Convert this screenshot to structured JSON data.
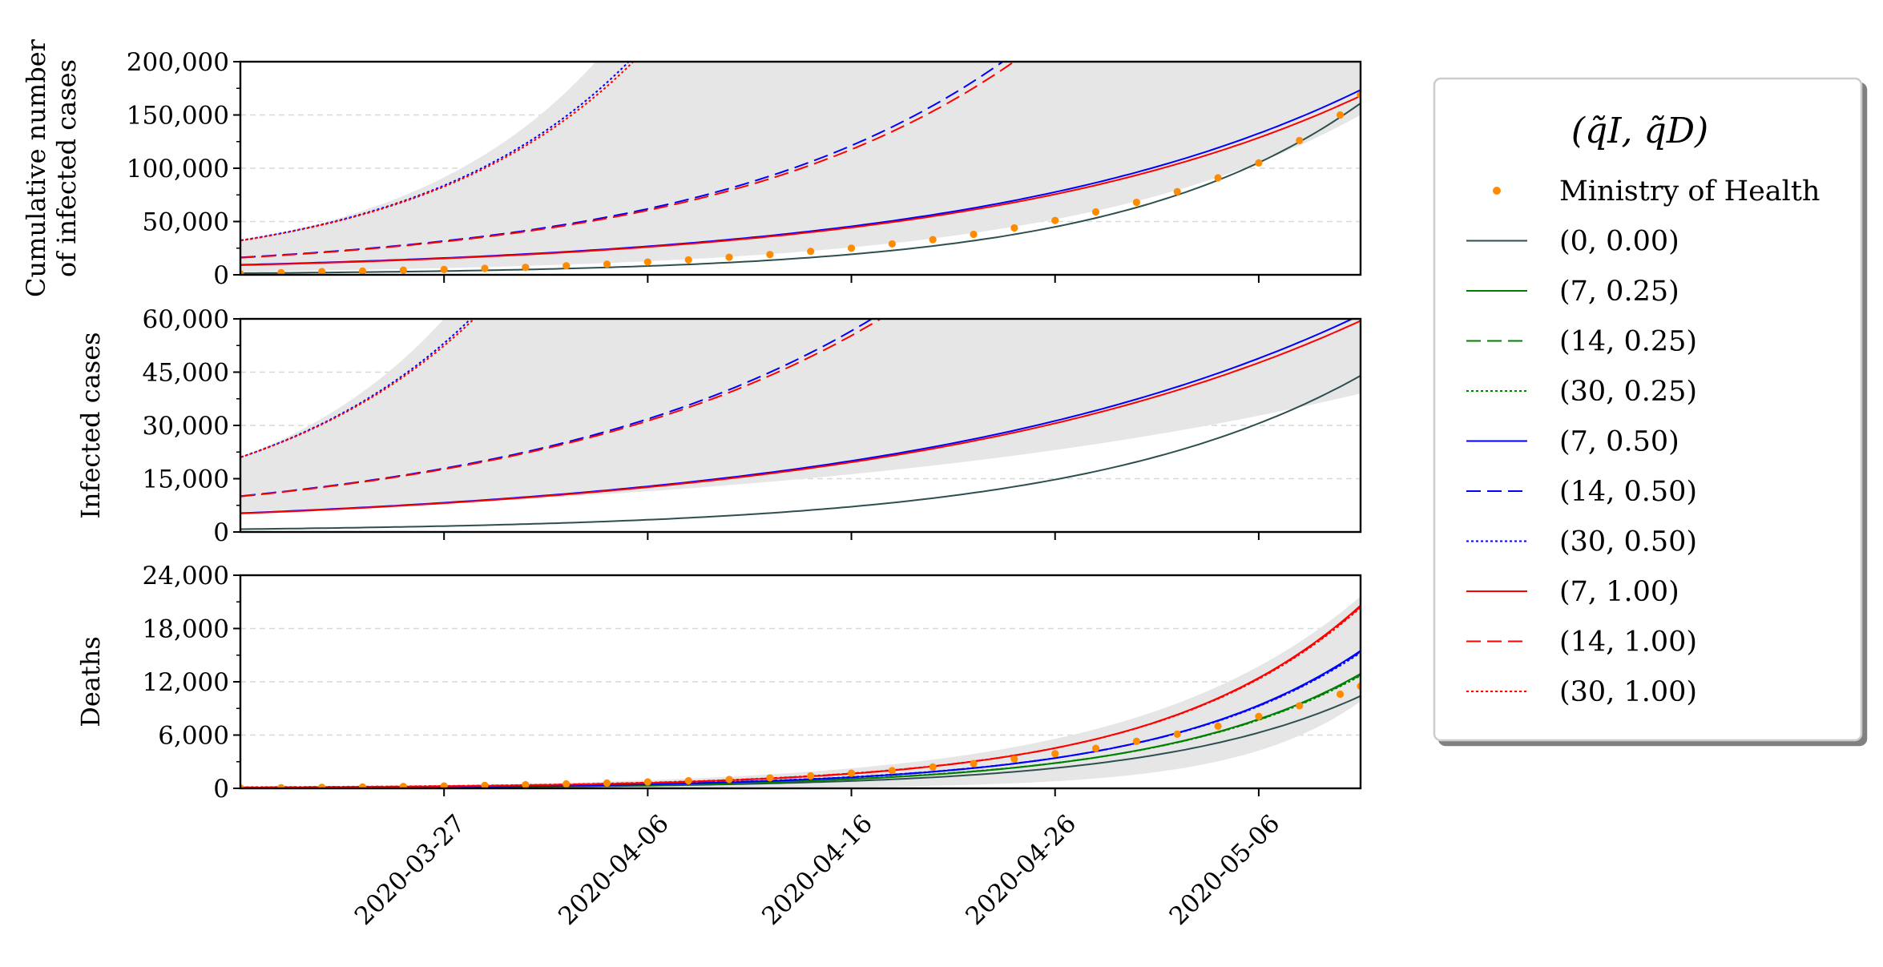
{
  "chart_data": {
    "type": "line",
    "x_axis": {
      "kind": "date",
      "range": [
        "2020-03-17",
        "2020-05-11"
      ],
      "tick_labels": [
        "2020-03-27",
        "2020-04-06",
        "2020-04-16",
        "2020-04-26",
        "2020-05-06"
      ]
    },
    "legend": {
      "title": "(q̃I, q̃D)",
      "placement": "outside-right"
    },
    "series_styles": [
      {
        "name": "Ministry of Health",
        "kind": "points",
        "color": "#ff8c00"
      },
      {
        "name": "(0, 0.00)",
        "kind": "line",
        "color": "#2f4f4f",
        "dash": "solid"
      },
      {
        "name": "(7, 0.25)",
        "kind": "line",
        "color": "#008000",
        "dash": "solid"
      },
      {
        "name": "(14, 0.25)",
        "kind": "line",
        "color": "#008000",
        "dash": "dashed"
      },
      {
        "name": "(30, 0.25)",
        "kind": "line",
        "color": "#008000",
        "dash": "dotted"
      },
      {
        "name": "(7, 0.50)",
        "kind": "line",
        "color": "#0000ff",
        "dash": "solid"
      },
      {
        "name": "(14, 0.50)",
        "kind": "line",
        "color": "#0000ff",
        "dash": "dashed"
      },
      {
        "name": "(30, 0.50)",
        "kind": "line",
        "color": "#0000ff",
        "dash": "dotted"
      },
      {
        "name": "(7, 1.00)",
        "kind": "line",
        "color": "#ff0000",
        "dash": "solid"
      },
      {
        "name": "(14, 1.00)",
        "kind": "line",
        "color": "#ff0000",
        "dash": "dashed"
      },
      {
        "name": "(30, 1.00)",
        "kind": "line",
        "color": "#ff0000",
        "dash": "dotted"
      }
    ],
    "subplots": [
      {
        "ylabel": [
          "Cumulative number",
          "of infected cases"
        ],
        "ylim": [
          0,
          200000
        ],
        "yticks": [
          0,
          50000,
          100000,
          150000,
          200000
        ],
        "ytick_labels": [
          "0",
          "50,000",
          "100,000",
          "150,000",
          "200,000"
        ],
        "grid": "horizontal dashed",
        "band": {
          "start_low": 0,
          "start_high": 32000,
          "end_low": 150000,
          "end_high": 200000,
          "rate_low": 0.0705,
          "rate_high": 0.105
        },
        "series": [
          {
            "name": "(0, 0.00)",
            "start": 1500,
            "end": 161000
          },
          {
            "name": "(7, 0.50)",
            "start": 9000,
            "rate": 0.0538,
            "offset": 0.25
          },
          {
            "name": "(7, 1.00)",
            "start": 9000,
            "rate": 0.0532,
            "offset": 0
          },
          {
            "name": "(14, 0.50)",
            "start": 16000,
            "rate": 0.0675,
            "offset": 0.25
          },
          {
            "name": "(14, 1.00)",
            "start": 16000,
            "rate": 0.0665,
            "offset": 0
          },
          {
            "name": "(30, 0.50)",
            "start": 32000,
            "rate": 0.0962,
            "offset": 0.25
          },
          {
            "name": "(30, 1.00)",
            "start": 32000,
            "rate": 0.095,
            "offset": 0
          }
        ],
        "ministry_points": [
          [
            "2020-03-17",
            1000
          ],
          [
            "2020-03-19",
            2000
          ],
          [
            "2020-03-21",
            3000
          ],
          [
            "2020-03-23",
            3500
          ],
          [
            "2020-03-25",
            4300
          ],
          [
            "2020-03-27",
            5000
          ],
          [
            "2020-03-29",
            6000
          ],
          [
            "2020-03-31",
            7000
          ],
          [
            "2020-04-02",
            8500
          ],
          [
            "2020-04-04",
            10000
          ],
          [
            "2020-04-06",
            12000
          ],
          [
            "2020-04-08",
            14000
          ],
          [
            "2020-04-10",
            16500
          ],
          [
            "2020-04-12",
            19000
          ],
          [
            "2020-04-14",
            22000
          ],
          [
            "2020-04-16",
            25000
          ],
          [
            "2020-04-18",
            29000
          ],
          [
            "2020-04-20",
            33000
          ],
          [
            "2020-04-22",
            38000
          ],
          [
            "2020-04-24",
            44000
          ],
          [
            "2020-04-26",
            51000
          ],
          [
            "2020-04-28",
            59000
          ],
          [
            "2020-04-30",
            68000
          ],
          [
            "2020-05-02",
            78000
          ],
          [
            "2020-05-04",
            91000
          ],
          [
            "2020-05-06",
            105000
          ],
          [
            "2020-05-08",
            126000
          ],
          [
            "2020-05-10",
            150000
          ],
          [
            "2020-05-11",
            169000
          ]
        ]
      },
      {
        "ylabel": [
          "Infected cases"
        ],
        "ylim": [
          0,
          60000
        ],
        "yticks": [
          0,
          15000,
          30000,
          45000,
          60000
        ],
        "ytick_labels": [
          "0",
          "15,000",
          "30,000",
          "45,000",
          "60,000"
        ],
        "grid": "horizontal dashed",
        "band": {
          "start_low": 0,
          "start_high": 21000,
          "end_low": 39000,
          "end_high": 60000,
          "rate_low": 0.035,
          "rate_high": 0.105
        },
        "series": [
          {
            "name": "(0, 0.00)",
            "start": 800,
            "end": 44000
          },
          {
            "name": "(7, 0.50)",
            "start": 5200,
            "rate": 0.0448,
            "offset": 0.25
          },
          {
            "name": "(7, 1.00)",
            "start": 5200,
            "rate": 0.0443,
            "offset": 0
          },
          {
            "name": "(14, 0.50)",
            "start": 10000,
            "rate": 0.0578,
            "offset": 0.25
          },
          {
            "name": "(14, 1.00)",
            "start": 10000,
            "rate": 0.057,
            "offset": 0
          },
          {
            "name": "(30, 0.50)",
            "start": 21000,
            "rate": 0.093,
            "offset": 0.25
          },
          {
            "name": "(30, 1.00)",
            "start": 21000,
            "rate": 0.0915,
            "offset": 0
          }
        ],
        "ministry_points": []
      },
      {
        "ylabel": [
          "Deaths"
        ],
        "ylim": [
          0,
          24000
        ],
        "yticks": [
          0,
          6000,
          12000,
          18000,
          24000
        ],
        "ytick_labels": [
          "0",
          "6,000",
          "12,000",
          "18,000",
          "24,000"
        ],
        "grid": "horizontal dashed",
        "band": {
          "start_low": 0,
          "start_high": 150,
          "end_low": 9800,
          "end_high": 21600
        },
        "series": [
          {
            "name": "(0, 0.00)",
            "start": 40,
            "end": 10400
          },
          {
            "name": "(7, 0.25)",
            "start": 50,
            "end": 12900
          },
          {
            "name": "(14, 0.25)",
            "start": 50,
            "end": 12800,
            "offset": 0.15
          },
          {
            "name": "(30, 0.25)",
            "start": 50,
            "end": 12700,
            "offset": 0.3
          },
          {
            "name": "(7, 0.50)",
            "start": 60,
            "end": 15500
          },
          {
            "name": "(14, 0.50)",
            "start": 60,
            "end": 15400,
            "offset": 0.15
          },
          {
            "name": "(30, 0.50)",
            "start": 60,
            "end": 15300,
            "offset": 0.3
          },
          {
            "name": "(7, 1.00)",
            "start": 80,
            "end": 20600
          },
          {
            "name": "(14, 1.00)",
            "start": 80,
            "end": 20500,
            "offset": 0.15
          },
          {
            "name": "(30, 1.00)",
            "start": 80,
            "end": 20400,
            "offset": 0.3
          }
        ],
        "ministry_points": [
          [
            "2020-03-17",
            40
          ],
          [
            "2020-03-19",
            70
          ],
          [
            "2020-03-21",
            110
          ],
          [
            "2020-03-23",
            150
          ],
          [
            "2020-03-25",
            200
          ],
          [
            "2020-03-27",
            260
          ],
          [
            "2020-03-29",
            330
          ],
          [
            "2020-03-31",
            410
          ],
          [
            "2020-04-02",
            500
          ],
          [
            "2020-04-04",
            600
          ],
          [
            "2020-04-06",
            720
          ],
          [
            "2020-04-08",
            860
          ],
          [
            "2020-04-10",
            1000
          ],
          [
            "2020-04-12",
            1180
          ],
          [
            "2020-04-14",
            1400
          ],
          [
            "2020-04-16",
            1700
          ],
          [
            "2020-04-18",
            2000
          ],
          [
            "2020-04-20",
            2400
          ],
          [
            "2020-04-22",
            2800
          ],
          [
            "2020-04-24",
            3300
          ],
          [
            "2020-04-26",
            3900
          ],
          [
            "2020-04-28",
            4500
          ],
          [
            "2020-04-30",
            5300
          ],
          [
            "2020-05-02",
            6100
          ],
          [
            "2020-05-04",
            7000
          ],
          [
            "2020-05-06",
            8100
          ],
          [
            "2020-05-08",
            9300
          ],
          [
            "2020-05-10",
            10600
          ],
          [
            "2020-05-11",
            11500
          ]
        ]
      }
    ]
  }
}
